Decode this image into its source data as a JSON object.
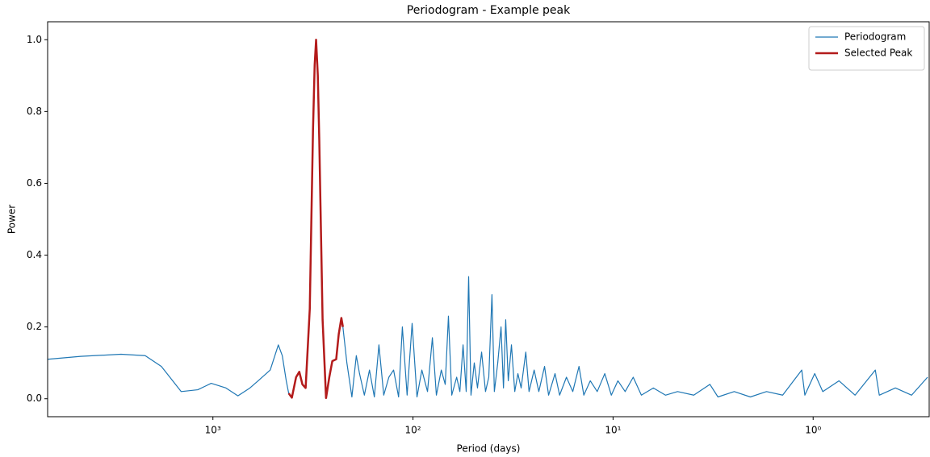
{
  "chart_data": {
    "type": "line",
    "title": "Periodogram - Example peak",
    "xlabel": "Period (days)",
    "ylabel": "Power",
    "xscale": "log",
    "xlim": [
      6700,
      0.263
    ],
    "ylim": [
      -0.05,
      1.05
    ],
    "xticks": [
      {
        "value": 1000,
        "label": "10³"
      },
      {
        "value": 100,
        "label": "10²"
      },
      {
        "value": 10,
        "label": "10¹"
      },
      {
        "value": 1,
        "label": "10⁰"
      }
    ],
    "yticks": [
      {
        "value": 0,
        "label": "0.0"
      },
      0.2,
      0.4,
      0.6,
      0.8,
      {
        "value": 1,
        "label": "1.0"
      }
    ],
    "legend": "upper right",
    "series": [
      {
        "name": "Periodogram",
        "color": "#1f77b4",
        "x": [
          6700,
          4580,
          2880,
          2180,
          1810,
          1440,
          1190,
          1020,
          861,
          750,
          653,
          594,
          517,
          471,
          450,
          430,
          418,
          403,
          384,
          370,
          357,
          344,
          328,
          322,
          316,
          310,
          305,
          299,
          294,
          288,
          283,
          272,
          262,
          253,
          242,
          235,
          228,
          224,
          214,
          202,
          192,
          185,
          175,
          165,
          156,
          148,
          140,
          132,
          125,
          118,
          113,
          107,
          101,
          95.5,
          90.3,
          84.6,
          80.0,
          76.4,
          72.2,
          69.0,
          66.5,
          64.0,
          60.5,
          58.3,
          56.2,
          54.2,
          52.7,
          51.3,
          49.4,
          47.6,
          45.4,
          43.4,
          41.8,
          40.3,
          39.2,
          37.7,
          36.3,
          35.3,
          34.4,
          33.4,
          32.2,
          31.0,
          29.9,
          28.8,
          27.3,
          26.3,
          24.8,
          23.5,
          22.0,
          21.0,
          19.5,
          18.5,
          17.1,
          15.9,
          14.8,
          14.0,
          13.0,
          12.0,
          11.0,
          10.2,
          9.46,
          8.7,
          7.93,
          7.22,
          6.29,
          5.47,
          4.76,
          3.95,
          3.28,
          2.99,
          2.48,
          2.06,
          1.71,
          1.42,
          1.14,
          1.1,
          0.982,
          0.895,
          0.743,
          0.617,
          0.489,
          0.467,
          0.388,
          0.322,
          0.268
        ],
        "values": [
          0.11,
          0.118,
          0.124,
          0.12,
          0.09,
          0.02,
          0.025,
          0.043,
          0.03,
          0.008,
          0.03,
          0.05,
          0.08,
          0.15,
          0.12,
          0.05,
          0.015,
          0.003,
          0.06,
          0.075,
          0.04,
          0.03,
          0.25,
          0.5,
          0.75,
          0.93,
          1.0,
          0.9,
          0.72,
          0.45,
          0.22,
          0.002,
          0.06,
          0.105,
          0.11,
          0.18,
          0.225,
          0.2,
          0.1,
          0.005,
          0.12,
          0.07,
          0.01,
          0.08,
          0.005,
          0.15,
          0.01,
          0.06,
          0.08,
          0.005,
          0.2,
          0.01,
          0.21,
          0.005,
          0.08,
          0.02,
          0.17,
          0.01,
          0.08,
          0.04,
          0.23,
          0.01,
          0.06,
          0.02,
          0.15,
          0.02,
          0.34,
          0.01,
          0.1,
          0.03,
          0.13,
          0.02,
          0.06,
          0.29,
          0.02,
          0.1,
          0.2,
          0.03,
          0.22,
          0.05,
          0.15,
          0.02,
          0.07,
          0.03,
          0.13,
          0.02,
          0.08,
          0.02,
          0.09,
          0.01,
          0.07,
          0.01,
          0.06,
          0.02,
          0.09,
          0.01,
          0.05,
          0.02,
          0.07,
          0.01,
          0.05,
          0.02,
          0.06,
          0.01,
          0.03,
          0.01,
          0.02,
          0.01,
          0.04,
          0.005,
          0.02,
          0.005,
          0.02,
          0.01,
          0.08,
          0.01,
          0.07,
          0.02,
          0.05,
          0.01,
          0.08,
          0.01,
          0.03,
          0.01,
          0.06
        ]
      },
      {
        "name": "Selected Peak",
        "color": "#b31b1b",
        "x": [
          418,
          403,
          384,
          370,
          357,
          344,
          328,
          322,
          316,
          310,
          305,
          299,
          294,
          288,
          283,
          272,
          262,
          253,
          242,
          235,
          228,
          224
        ],
        "values": [
          0.015,
          0.003,
          0.06,
          0.075,
          0.04,
          0.03,
          0.25,
          0.5,
          0.75,
          0.93,
          1.0,
          0.9,
          0.72,
          0.45,
          0.22,
          0.002,
          0.06,
          0.105,
          0.11,
          0.18,
          0.225,
          0.2
        ]
      }
    ]
  }
}
